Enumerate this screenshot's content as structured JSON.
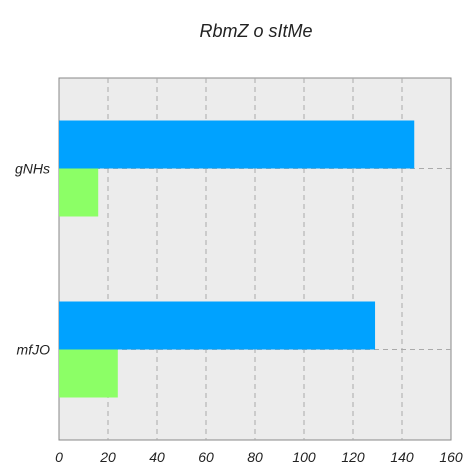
{
  "chart_data": {
    "type": "bar",
    "orientation": "horizontal",
    "title": "RbmZ  o sItMe",
    "xlabel": "",
    "ylabel": "",
    "categories": [
      "gNHs",
      "mfJO"
    ],
    "series": [
      {
        "values": [
          145,
          129
        ],
        "color": "#00a2ff"
      },
      {
        "values": [
          16,
          24
        ],
        "color": "#8cff66"
      }
    ],
    "xlim": [
      0,
      160
    ],
    "x_ticks": [
      0,
      20,
      40,
      60,
      80,
      100,
      120,
      140,
      160
    ],
    "grid": true,
    "legend": "none",
    "plot_background": "#ececec"
  }
}
